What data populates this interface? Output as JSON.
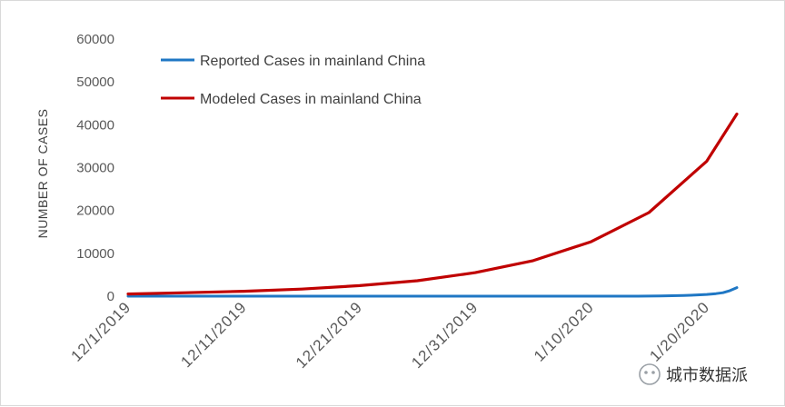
{
  "chart_data": {
    "type": "line",
    "ylabel": "NUMBER OF CASES",
    "ylim": [
      0,
      60000
    ],
    "yticks": [
      "0",
      "10000",
      "20000",
      "30000",
      "40000",
      "50000",
      "60000"
    ],
    "x_start": "12/1/2019",
    "x_end": "1/23/2020",
    "xticks": [
      {
        "date": "12/1/2019",
        "day": 0
      },
      {
        "date": "12/11/2019",
        "day": 10
      },
      {
        "date": "12/21/2019",
        "day": 20
      },
      {
        "date": "12/31/2019",
        "day": 30
      },
      {
        "date": "1/10/2020",
        "day": 40
      },
      {
        "date": "1/20/2020",
        "day": 50
      }
    ],
    "legend_position": "top-left",
    "grid": false,
    "series": [
      {
        "name": "Reported Cases in mainland China",
        "color": "#1f77c4",
        "points": [
          [
            0,
            0
          ],
          [
            10,
            0
          ],
          [
            20,
            0
          ],
          [
            30,
            0
          ],
          [
            40,
            0
          ],
          [
            44,
            0
          ],
          [
            46,
            50
          ],
          [
            48,
            150
          ],
          [
            49,
            250
          ],
          [
            50,
            400
          ],
          [
            50.8,
            600
          ],
          [
            51.4,
            800
          ],
          [
            52,
            1300
          ],
          [
            52.6,
            2000
          ]
        ]
      },
      {
        "name": "Modeled Cases in mainland China",
        "color": "#c00000",
        "points": [
          [
            0,
            500
          ],
          [
            5,
            800
          ],
          [
            10,
            1150
          ],
          [
            15,
            1650
          ],
          [
            20,
            2450
          ],
          [
            25,
            3600
          ],
          [
            30,
            5500
          ],
          [
            35,
            8300
          ],
          [
            40,
            12700
          ],
          [
            45,
            19500
          ],
          [
            50,
            31500
          ],
          [
            52.6,
            42500
          ]
        ]
      }
    ]
  },
  "watermark": "城市数据派"
}
